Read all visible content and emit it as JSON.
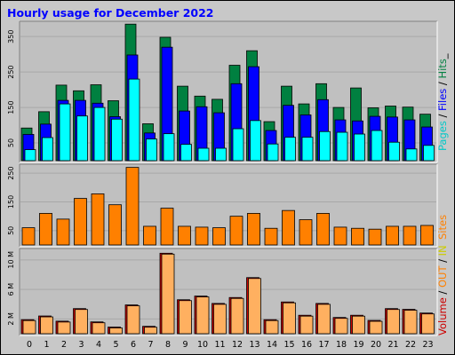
{
  "title": "Hourly usage for December 2022",
  "colors": {
    "frame_bg": "#c8c8c8",
    "panel_bg": "#c0c0c0",
    "hits": "#008040",
    "files": "#0000ff",
    "pages": "#00ffff",
    "sites": "#ff8000",
    "kbytes_in": "#ffb060",
    "kbytes_out": "#cc0000"
  },
  "legends": {
    "top": {
      "parts": [
        {
          "text": "Pages",
          "color": "#00c8c8"
        },
        {
          "text": " / ",
          "color": "#000000"
        },
        {
          "text": "Files",
          "color": "#0000ff"
        },
        {
          "text": " / ",
          "color": "#000000"
        },
        {
          "text": "Hits",
          "color": "#008040"
        },
        {
          "text": "_",
          "color": "#000000"
        }
      ]
    },
    "middle": {
      "parts": [
        {
          "text": "Sites",
          "color": "#ff8000"
        }
      ]
    },
    "bottom": {
      "parts": [
        {
          "text": "Volume",
          "color": "#cc0000"
        },
        {
          "text": " / ",
          "color": "#000000"
        },
        {
          "text": "OUT",
          "color": "#ff8000"
        },
        {
          "text": " / ",
          "color": "#000000"
        },
        {
          "text": "IN",
          "color": "#cccc00"
        }
      ]
    }
  },
  "chart_data": [
    {
      "type": "bar",
      "panel": "hits-files-pages",
      "categories": [
        "0",
        "1",
        "2",
        "3",
        "4",
        "5",
        "6",
        "7",
        "8",
        "9",
        "10",
        "11",
        "12",
        "13",
        "14",
        "15",
        "16",
        "17",
        "18",
        "19",
        "20",
        "21",
        "22",
        "23"
      ],
      "yticks": [
        50,
        150,
        250,
        350
      ],
      "ylim": [
        0,
        388
      ],
      "series": [
        {
          "name": "Hits",
          "values": [
            92,
            138,
            213,
            197,
            214,
            169,
            385,
            104,
            348,
            210,
            182,
            173,
            269,
            310,
            110,
            210,
            160,
            217,
            150,
            205,
            149,
            154,
            151,
            131
          ]
        },
        {
          "name": "Files",
          "values": [
            74,
            103,
            170,
            170,
            162,
            124,
            298,
            78,
            320,
            140,
            152,
            135,
            217,
            265,
            85,
            156,
            129,
            172,
            115,
            112,
            125,
            123,
            115,
            95
          ]
        },
        {
          "name": "Pages",
          "values": [
            31,
            65,
            160,
            126,
            150,
            117,
            230,
            61,
            76,
            46,
            35,
            35,
            90,
            113,
            47,
            66,
            66,
            82,
            80,
            75,
            85,
            52,
            33,
            43
          ]
        }
      ]
    },
    {
      "type": "bar",
      "panel": "sites",
      "categories": [
        "0",
        "1",
        "2",
        "3",
        "4",
        "5",
        "6",
        "7",
        "8",
        "9",
        "10",
        "11",
        "12",
        "13",
        "14",
        "15",
        "16",
        "17",
        "18",
        "19",
        "20",
        "21",
        "22",
        "23"
      ],
      "yticks": [
        50,
        150,
        250
      ],
      "ylim": [
        0,
        275
      ],
      "series": [
        {
          "name": "Sites",
          "values": [
            60,
            110,
            90,
            162,
            178,
            140,
            270,
            65,
            128,
            65,
            62,
            60,
            100,
            110,
            58,
            120,
            88,
            110,
            62,
            58,
            55,
            65,
            65,
            68
          ]
        }
      ]
    },
    {
      "type": "bar",
      "panel": "volume",
      "categories": [
        "0",
        "1",
        "2",
        "3",
        "4",
        "5",
        "6",
        "7",
        "8",
        "9",
        "10",
        "11",
        "12",
        "13",
        "14",
        "15",
        "16",
        "17",
        "18",
        "19",
        "20",
        "21",
        "22",
        "23"
      ],
      "yticks": [
        "2 M",
        "6 M",
        "10 M"
      ],
      "ytick_values": [
        2,
        6,
        10
      ],
      "ylim": [
        0,
        11.3
      ],
      "series": [
        {
          "name": "OUT",
          "values": [
            1.9,
            2.4,
            1.7,
            3.4,
            1.6,
            0.9,
            3.9,
            1.0,
            10.9,
            4.6,
            5.1,
            4.1,
            4.9,
            7.6,
            1.9,
            4.3,
            2.5,
            4.1,
            2.2,
            2.5,
            1.8,
            3.4,
            3.3,
            2.8
          ]
        },
        {
          "name": "Volume",
          "values": [
            1.9,
            2.4,
            1.7,
            3.4,
            1.6,
            0.9,
            3.9,
            1.0,
            10.9,
            4.6,
            5.1,
            4.1,
            4.9,
            7.6,
            1.9,
            4.3,
            2.5,
            4.1,
            2.2,
            2.5,
            1.8,
            3.4,
            3.3,
            2.8
          ]
        }
      ]
    }
  ]
}
